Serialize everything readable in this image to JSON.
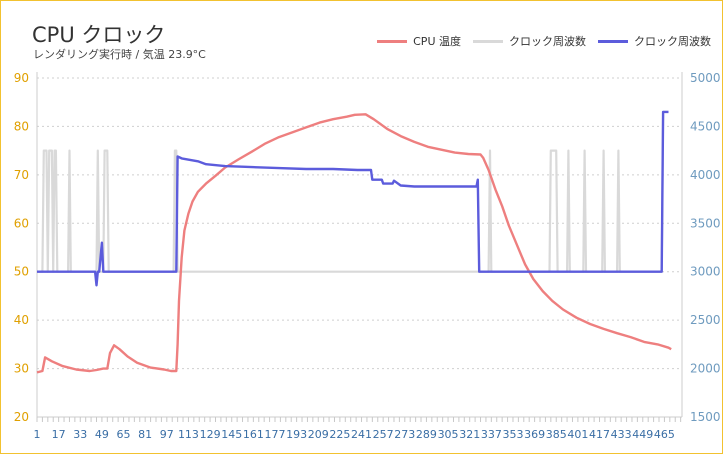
{
  "chart_data": {
    "type": "line",
    "title": "CPU クロック",
    "subtitle": "レンダリング実行時 / 気温 23.9°C",
    "legend_position": "top-right",
    "grid": true,
    "y_left": {
      "ticks": [
        20,
        30,
        40,
        50,
        60,
        70,
        80,
        90
      ],
      "range": [
        20,
        90
      ],
      "color": "#e0a000"
    },
    "y_right": {
      "ticks": [
        1500,
        2000,
        2500,
        3000,
        3500,
        4000,
        4500,
        5000
      ],
      "range": [
        1500,
        5000
      ],
      "color": "#6f9bbf"
    },
    "x": {
      "range": [
        1,
        478
      ],
      "tick_labels": [
        "1",
        "17",
        "33",
        "49",
        "65",
        "81",
        "97",
        "113",
        "129",
        "145",
        "161",
        "177",
        "193",
        "209",
        "225",
        "241",
        "257",
        "273",
        "289",
        "305",
        "321",
        "337",
        "353",
        "369",
        "385",
        "401",
        "417",
        "433",
        "449",
        "465"
      ]
    },
    "series": [
      {
        "name": "CPU 温度",
        "axis": "left",
        "color": "#ee7f7f",
        "points": [
          [
            1,
            29.2
          ],
          [
            5,
            29.5
          ],
          [
            7,
            32.3
          ],
          [
            12,
            31.5
          ],
          [
            20,
            30.5
          ],
          [
            30,
            29.8
          ],
          [
            40,
            29.5
          ],
          [
            45,
            29.7
          ],
          [
            50,
            30.0
          ],
          [
            53,
            30.0
          ],
          [
            55,
            33.2
          ],
          [
            58,
            34.8
          ],
          [
            62,
            34.0
          ],
          [
            68,
            32.5
          ],
          [
            75,
            31.2
          ],
          [
            85,
            30.2
          ],
          [
            95,
            29.8
          ],
          [
            100,
            29.5
          ],
          [
            104,
            29.5
          ],
          [
            105,
            35.0
          ],
          [
            106,
            44.0
          ],
          [
            108,
            53.0
          ],
          [
            110,
            58.5
          ],
          [
            113,
            62.0
          ],
          [
            116,
            64.5
          ],
          [
            120,
            66.5
          ],
          [
            126,
            68.2
          ],
          [
            133,
            69.8
          ],
          [
            140,
            71.5
          ],
          [
            150,
            73.2
          ],
          [
            160,
            74.8
          ],
          [
            170,
            76.5
          ],
          [
            180,
            77.8
          ],
          [
            190,
            78.8
          ],
          [
            200,
            79.8
          ],
          [
            210,
            80.8
          ],
          [
            220,
            81.5
          ],
          [
            230,
            82.0
          ],
          [
            236,
            82.4
          ],
          [
            244,
            82.5
          ],
          [
            250,
            81.5
          ],
          [
            260,
            79.5
          ],
          [
            270,
            78.0
          ],
          [
            280,
            76.8
          ],
          [
            290,
            75.8
          ],
          [
            300,
            75.2
          ],
          [
            310,
            74.6
          ],
          [
            320,
            74.3
          ],
          [
            329,
            74.2
          ],
          [
            331,
            73.5
          ],
          [
            335,
            71.0
          ],
          [
            340,
            67.0
          ],
          [
            345,
            63.5
          ],
          [
            350,
            59.5
          ],
          [
            356,
            55.5
          ],
          [
            362,
            51.5
          ],
          [
            368,
            48.5
          ],
          [
            375,
            46.0
          ],
          [
            382,
            44.0
          ],
          [
            390,
            42.2
          ],
          [
            400,
            40.5
          ],
          [
            410,
            39.2
          ],
          [
            420,
            38.2
          ],
          [
            430,
            37.3
          ],
          [
            440,
            36.5
          ],
          [
            450,
            35.5
          ],
          [
            460,
            35.0
          ],
          [
            468,
            34.3
          ],
          [
            470,
            34.0
          ]
        ]
      },
      {
        "name": "クロック周波数",
        "axis": "right",
        "color": "#d9d9d9",
        "points": [
          [
            1,
            3000
          ],
          [
            5,
            3000
          ],
          [
            6,
            4250
          ],
          [
            8,
            4250
          ],
          [
            9,
            3000
          ],
          [
            10,
            4250
          ],
          [
            12,
            4250
          ],
          [
            13,
            3000
          ],
          [
            14,
            4250
          ],
          [
            15,
            4250
          ],
          [
            16,
            3000
          ],
          [
            24,
            3000
          ],
          [
            25,
            4250
          ],
          [
            26,
            3000
          ],
          [
            45,
            3000
          ],
          [
            46,
            4250
          ],
          [
            47,
            3000
          ],
          [
            50,
            3000
          ],
          [
            51,
            4250
          ],
          [
            53,
            4250
          ],
          [
            54,
            3000
          ],
          [
            102,
            3000
          ],
          [
            103,
            4250
          ],
          [
            104,
            4250
          ],
          [
            105,
            3000
          ],
          [
            335,
            3000
          ],
          [
            336,
            4250
          ],
          [
            337,
            3000
          ],
          [
            380,
            3000
          ],
          [
            381,
            4250
          ],
          [
            385,
            4250
          ],
          [
            386,
            3000
          ],
          [
            393,
            3000
          ],
          [
            394,
            4250
          ],
          [
            395,
            3000
          ],
          [
            405,
            3000
          ],
          [
            406,
            4250
          ],
          [
            407,
            3000
          ],
          [
            419,
            3000
          ],
          [
            420,
            4250
          ],
          [
            421,
            3000
          ],
          [
            430,
            3000
          ],
          [
            431,
            4250
          ],
          [
            432,
            3000
          ],
          [
            463,
            3000
          ],
          [
            464,
            4650
          ],
          [
            468,
            4650
          ]
        ]
      },
      {
        "name": "クロック周波数",
        "axis": "right",
        "color": "#5c5cdc",
        "points": [
          [
            1,
            3000
          ],
          [
            44,
            3000
          ],
          [
            45,
            2860
          ],
          [
            46,
            3000
          ],
          [
            47,
            3000
          ],
          [
            49,
            3300
          ],
          [
            50,
            3000
          ],
          [
            104,
            3000
          ],
          [
            105,
            4190
          ],
          [
            108,
            4170
          ],
          [
            120,
            4140
          ],
          [
            126,
            4110
          ],
          [
            140,
            4090
          ],
          [
            160,
            4080
          ],
          [
            180,
            4070
          ],
          [
            200,
            4060
          ],
          [
            220,
            4060
          ],
          [
            238,
            4050
          ],
          [
            248,
            4050
          ],
          [
            249,
            3950
          ],
          [
            256,
            3950
          ],
          [
            257,
            3910
          ],
          [
            264,
            3910
          ],
          [
            265,
            3940
          ],
          [
            270,
            3890
          ],
          [
            280,
            3880
          ],
          [
            300,
            3880
          ],
          [
            326,
            3880
          ],
          [
            327,
            3950
          ],
          [
            328,
            3000
          ],
          [
            463,
            3000
          ],
          [
            464,
            4650
          ],
          [
            468,
            4650
          ]
        ]
      }
    ]
  },
  "legend": {
    "items": [
      {
        "label": "CPU 温度",
        "color": "#ee7f7f"
      },
      {
        "label": "クロック周波数",
        "color": "#d9d9d9"
      },
      {
        "label": "クロック周波数",
        "color": "#5c5cdc"
      }
    ]
  }
}
